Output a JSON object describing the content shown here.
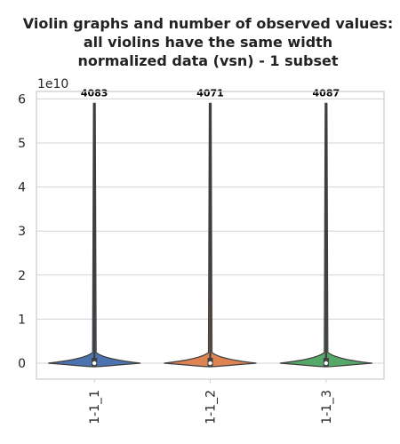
{
  "chart_data": {
    "type": "violin",
    "title_lines": [
      "Violin graphs and number of observed values:",
      "all violins have the same width",
      "normalized data (vsn) - 1 subset"
    ],
    "y_offset_label": "1e10",
    "y_scale": 10000000000,
    "ylim": [
      -0.36,
      6.2
    ],
    "yticks": [
      0,
      1,
      2,
      3,
      4,
      5,
      6
    ],
    "grid": true,
    "categories": [
      "1-1_1",
      "1-1_2",
      "1-1_3"
    ],
    "counts": [
      "4083",
      "4071",
      "4087"
    ],
    "colors": [
      "#4c72b0",
      "#dd8452",
      "#55a868"
    ],
    "max_values": [
      5.9,
      5.9,
      5.9
    ],
    "median_values": [
      0.0,
      0.0,
      0.0
    ]
  }
}
